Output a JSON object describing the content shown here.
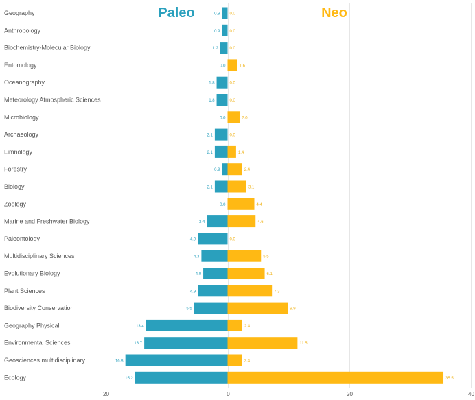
{
  "chart_data": {
    "type": "bar",
    "orientation": "horizontal-diverging",
    "series_headers": {
      "paleo": "Paleo",
      "neo": "Neo"
    },
    "categories": [
      "Geography",
      "Anthropology",
      "Biochemistry-Molecular Biology",
      "Entomology",
      "Oceanography",
      "Meteorology Atmospheric Sciences",
      "Microbiology",
      "Archaeology",
      "Limnology",
      "Forestry",
      "Biology",
      "Zoology",
      "Marine and Freshwater Biology",
      "Paleontology",
      "Multidisciplinary Sciences",
      "Evolutionary Biology",
      "Plant Sciences",
      "Biodiversity Conservation",
      "Geography Physical",
      "Environmental Sciences",
      "Geosciences multidisciplinary",
      "Ecology"
    ],
    "series": [
      {
        "name": "Paleo",
        "values": [
          0.9,
          0.9,
          1.2,
          0.0,
          1.8,
          1.8,
          0.0,
          2.1,
          2.1,
          0.9,
          2.1,
          0.0,
          3.4,
          4.9,
          4.3,
          4.0,
          4.9,
          5.5,
          13.4,
          13.7,
          16.8,
          15.2
        ],
        "labels": [
          "0.9",
          "0.9",
          "1.2",
          "0.0",
          "1.8",
          "1.8",
          "0.0",
          "2.1",
          "2.1",
          "0.9",
          "2.1",
          "0.0",
          "3.4",
          "4.9",
          "4.3",
          "4.0",
          "4.9",
          "5.5",
          "13.4",
          "13.7",
          "16.8",
          "15.2"
        ]
      },
      {
        "name": "Neo",
        "values": [
          0.0,
          0.0,
          0.0,
          1.6,
          0.0,
          0.0,
          2.0,
          0.0,
          1.4,
          2.4,
          3.1,
          4.4,
          4.6,
          0.0,
          5.5,
          6.1,
          7.3,
          9.9,
          2.4,
          11.5,
          2.4,
          35.5
        ],
        "labels": [
          "0.0",
          "0.0",
          "0.0",
          "1.6",
          "0.0",
          "0.0",
          "2.0",
          "0.0",
          "1.4",
          "2.4",
          "3.1",
          "4.4",
          "4.6",
          "0.0",
          "5.5",
          "6.1",
          "7.3",
          "9.9",
          "2.4",
          "11.5",
          "2.4",
          "35.5"
        ]
      }
    ],
    "xlim": [
      -20,
      40
    ],
    "x_ticks": [
      {
        "value": -20,
        "label": "20"
      },
      {
        "value": 0,
        "label": "0"
      },
      {
        "value": 20,
        "label": "20"
      },
      {
        "value": 40,
        "label": "40"
      }
    ],
    "grid": true,
    "colors": {
      "paleo": "#2aa0bd",
      "neo": "#ffb914",
      "neo_label": "#f0b41c",
      "grid": "#e6e6e6",
      "text": "#555555"
    }
  }
}
